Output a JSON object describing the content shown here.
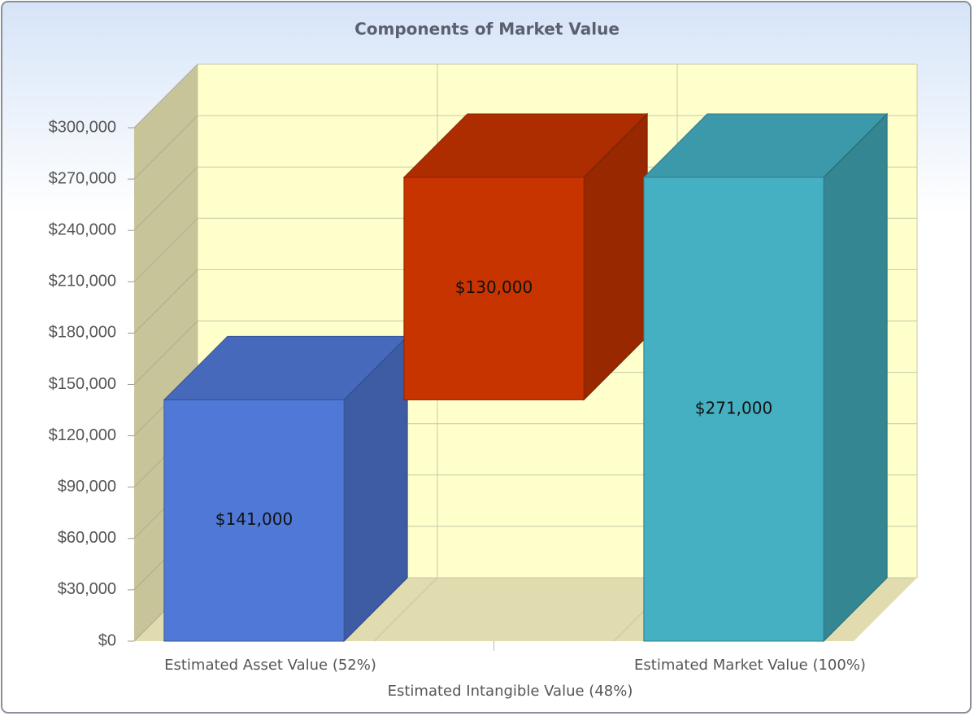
{
  "chart_data": {
    "type": "waterfall",
    "title": "Components of Market Value",
    "categories": [
      "Estimated Asset Value (52%)",
      "Estimated Intangible Value (48%)",
      "Estimated Market Value (100%)"
    ],
    "values": [
      141000,
      130000,
      271000
    ],
    "value_labels": [
      "$141,000",
      "$130,000",
      "$271,000"
    ],
    "colors": [
      "#5079d7",
      "#c83400",
      "#45b0c2"
    ],
    "ylim": [
      0,
      300000
    ],
    "yticks": [
      {
        "value": 0,
        "label": "$0"
      },
      {
        "value": 30000,
        "label": "$30,000"
      },
      {
        "value": 60000,
        "label": "$60,000"
      },
      {
        "value": 90000,
        "label": "$90,000"
      },
      {
        "value": 120000,
        "label": "$120,000"
      },
      {
        "value": 150000,
        "label": "$150,000"
      },
      {
        "value": 180000,
        "label": "$180,000"
      },
      {
        "value": 210000,
        "label": "$210,000"
      },
      {
        "value": 240000,
        "label": "$240,000"
      },
      {
        "value": 270000,
        "label": "$270,000"
      },
      {
        "value": 300000,
        "label": "$300,000"
      }
    ],
    "grid": true
  }
}
